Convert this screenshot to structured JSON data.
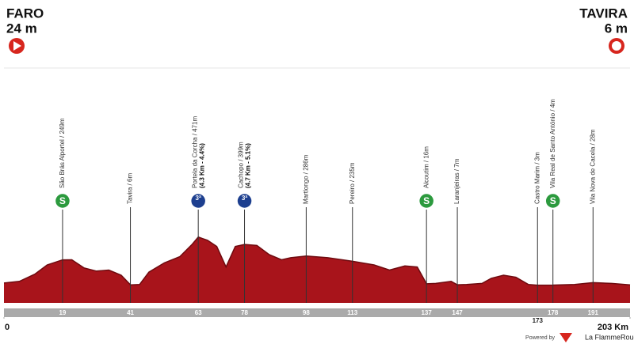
{
  "start": {
    "name": "FARO",
    "elevation": "24 m"
  },
  "finish": {
    "name": "TAVIRA",
    "elevation": "6 m"
  },
  "chart_data": {
    "type": "area",
    "color": "#a8141b",
    "x": [
      0,
      5,
      10,
      14,
      19,
      22,
      26,
      30,
      34,
      38,
      41,
      44,
      47,
      52,
      57,
      61,
      63,
      66,
      69,
      72,
      75,
      78,
      82,
      86,
      90,
      93,
      98,
      105,
      113,
      120,
      125,
      130,
      134,
      137,
      140,
      145,
      147,
      150,
      155,
      158,
      162,
      166,
      170,
      173,
      178,
      185,
      191,
      197,
      203
    ],
    "values": [
      24,
      40,
      110,
      200,
      249,
      250,
      170,
      140,
      150,
      100,
      6,
      10,
      130,
      220,
      280,
      400,
      471,
      440,
      380,
      180,
      380,
      399,
      390,
      300,
      250,
      270,
      286,
      270,
      235,
      200,
      150,
      190,
      180,
      16,
      20,
      40,
      7,
      10,
      20,
      70,
      100,
      80,
      10,
      3,
      4,
      10,
      28,
      20,
      6
    ],
    "xlim": [
      0,
      203
    ],
    "xticks": [
      0,
      {
        "value": 203,
        "label": "203 Km"
      }
    ],
    "waypoints": [
      {
        "km": 19,
        "label": "São Brás Alportel / 249m",
        "icon": "S"
      },
      {
        "km": 41,
        "label": "Tavira / 6m"
      },
      {
        "km": 63,
        "label": "Portela da Corcha / 471m",
        "detail": "(4.3 Km - 4.4%)",
        "icon": "3ª"
      },
      {
        "km": 78,
        "label": "Cachopo / 399m",
        "detail": "(4.7 Km - 5.1%)",
        "icon": "3ª"
      },
      {
        "km": 98,
        "label": "Martlongo / 286m"
      },
      {
        "km": 113,
        "label": "Pereiro / 235m"
      },
      {
        "km": 137,
        "label": "Alcoutim / 16m",
        "icon": "S"
      },
      {
        "km": 147,
        "label": "Laranjeiras / 7m"
      },
      {
        "km": 173,
        "label": "Castro Marim / 3m"
      },
      {
        "km": 178,
        "label": "Vila Real de Santo António / 4m",
        "icon": "S"
      },
      {
        "km": 191,
        "label": "Vila Nova de Cacela / 28m"
      }
    ]
  },
  "footer": {
    "prefix": "Powered by",
    "brand": "La FlammeRouge"
  }
}
